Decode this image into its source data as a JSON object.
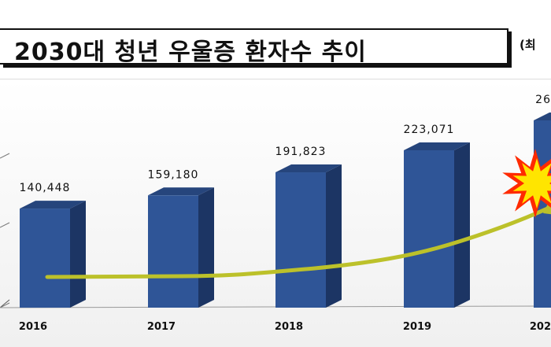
{
  "header": {
    "title": "2030대 청년 우울증 환자수 추이",
    "unit_note": "(최"
  },
  "colors": {
    "bar_front": "#2f5597",
    "bar_side": "#1c3564",
    "bar_top": "#26457c",
    "trend": "#bcc12a",
    "burst_outer": "#ff2a00",
    "burst_inner": "#ffe500"
  },
  "chart_data": {
    "type": "bar",
    "title": "2030대 청년 우울증 환자수 추이",
    "xlabel": "",
    "ylabel": "",
    "categories": [
      "2016",
      "2017",
      "2018",
      "2019",
      "202"
    ],
    "values": [
      140448,
      159180,
      191823,
      223071,
      null
    ],
    "value_labels": [
      "140,448",
      "159,180",
      "191,823",
      "223,071",
      "26"
    ],
    "trend_line": true,
    "grid": false,
    "legend": "none"
  }
}
